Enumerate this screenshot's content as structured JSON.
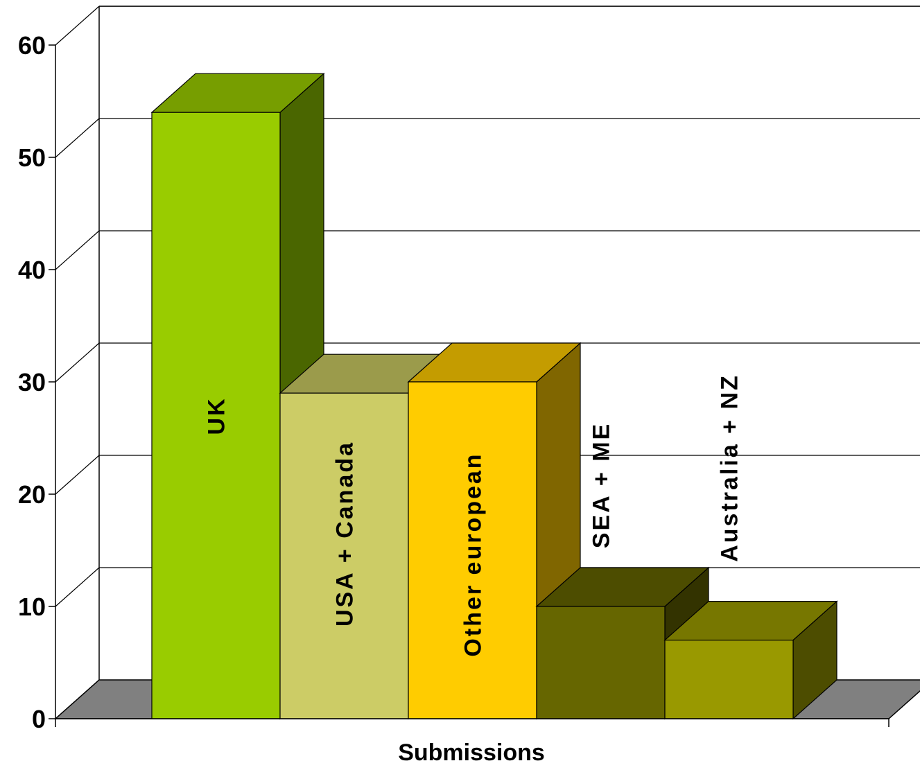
{
  "chart_data": {
    "type": "bar",
    "title": "",
    "xlabel": "Submissions",
    "ylabel": "",
    "ylim": [
      0,
      60
    ],
    "yticks": [
      0,
      10,
      20,
      30,
      40,
      50,
      60
    ],
    "grid": true,
    "three_d": true,
    "categories": [
      "UK",
      "USA + Canada",
      "Other european",
      "SEA + ME",
      "Australia + NZ"
    ],
    "values": [
      54,
      29,
      30,
      10,
      7
    ],
    "colors": {
      "bars": [
        {
          "front": "#99cc00",
          "top": "#779e00",
          "side": "#4a6600"
        },
        {
          "front": "#cccc66",
          "top": "#9b9b4b",
          "side": "#7a7a2e"
        },
        {
          "front": "#ffcc00",
          "top": "#c49c00",
          "side": "#806600"
        },
        {
          "front": "#666600",
          "top": "#4d4d00",
          "side": "#333300"
        },
        {
          "front": "#999900",
          "top": "#777700",
          "side": "#4d4d00"
        }
      ],
      "floor": "#808080",
      "grid": "#000000"
    }
  }
}
